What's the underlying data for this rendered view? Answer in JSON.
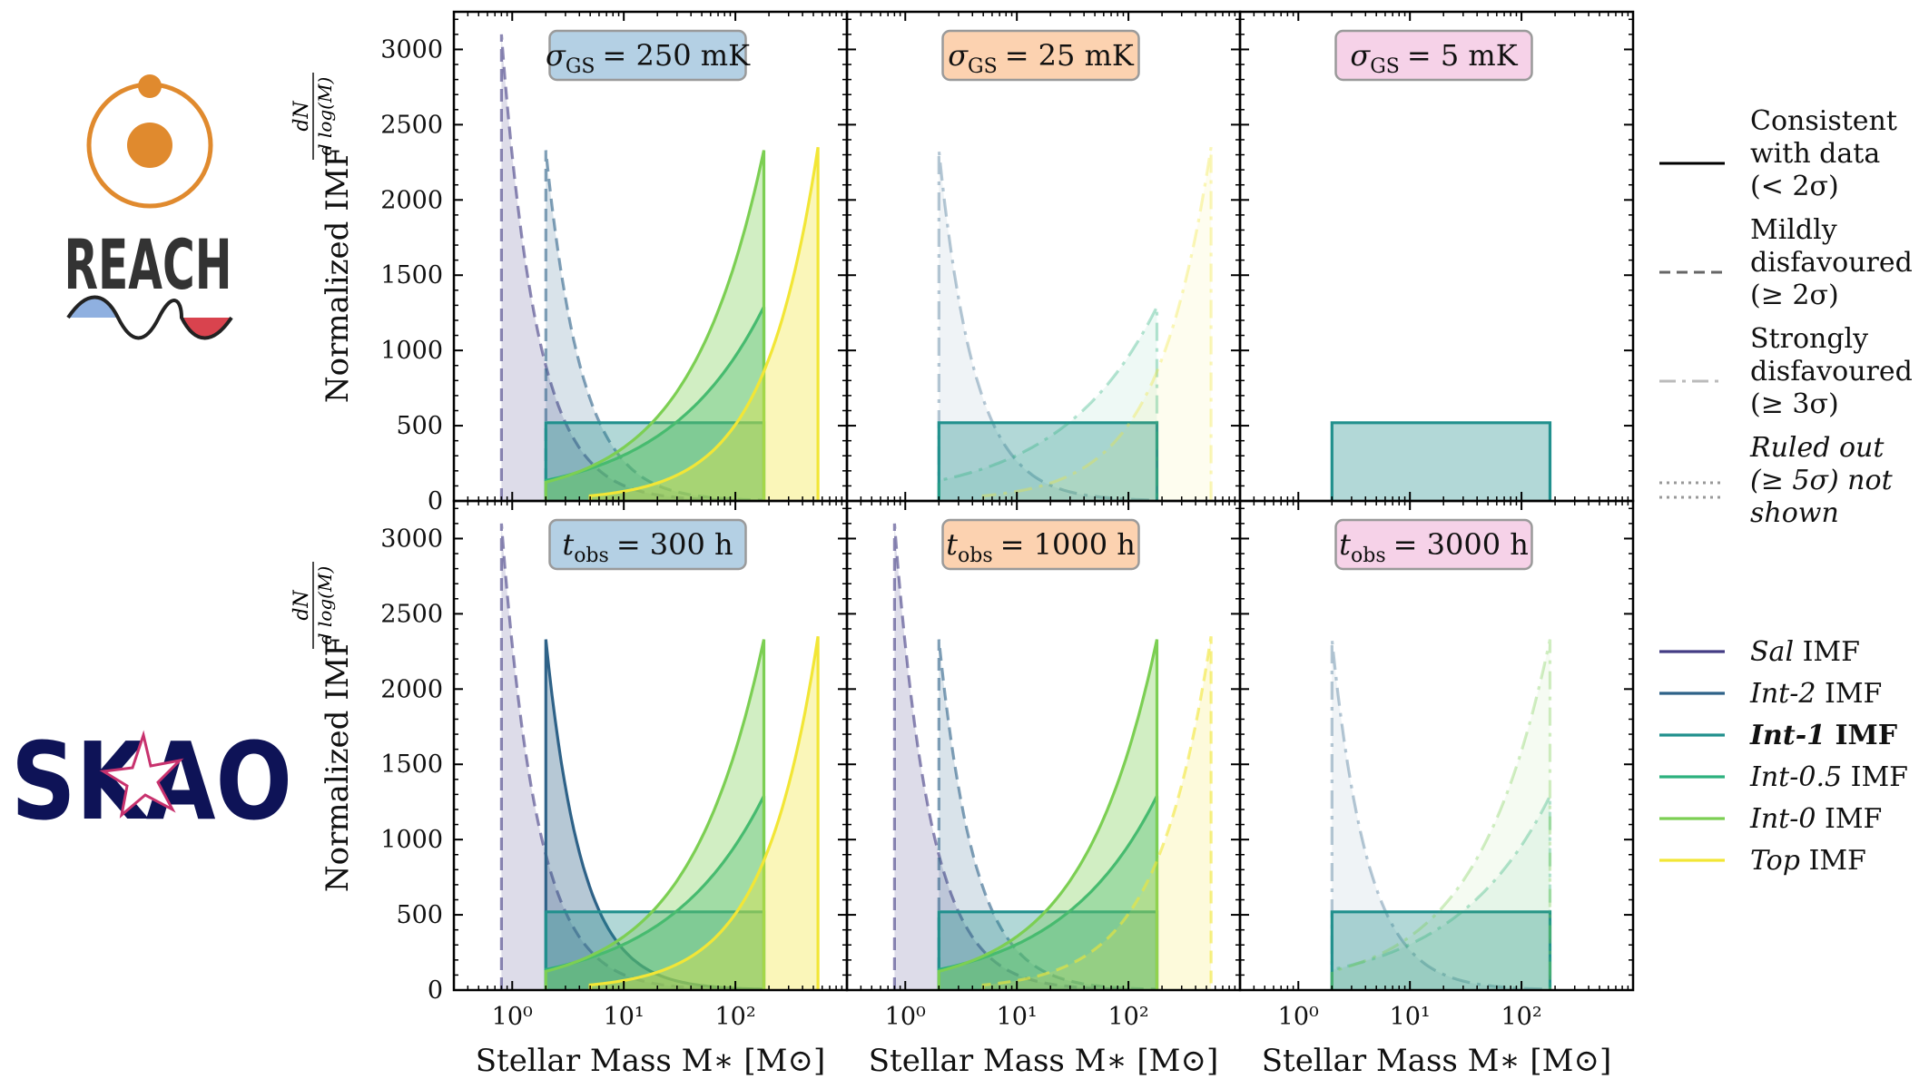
{
  "logos": {
    "reach": "REACH",
    "skao": "SKAO"
  },
  "figure": {
    "xlabel": "Stellar Mass M∗ [M⊙]",
    "ylabel": "Normalized IMF",
    "ylabel_frac_num": "dN",
    "ylabel_frac_den": "d log(M)",
    "x_tick_labels": [
      "10⁰",
      "10¹",
      "10²"
    ],
    "y_tick_labels": [
      "0",
      "500",
      "1000",
      "1500",
      "2000",
      "2500",
      "3000"
    ]
  },
  "legend": {
    "styles": [
      {
        "text": [
          "Consistent",
          "with data",
          "(< 2σ)"
        ],
        "dash": "solid"
      },
      {
        "text": [
          "Mildly",
          "disfavoured",
          "(≥ 2σ)"
        ],
        "dash": "dashed"
      },
      {
        "text": [
          "Strongly",
          "disfavoured",
          "(≥ 3σ)"
        ],
        "dash": "dashdot"
      },
      {
        "text": [
          "Ruled out",
          "(≥ 5σ) not",
          "shown"
        ],
        "dash": "dotted"
      }
    ],
    "imfs": [
      {
        "name": "Sal",
        "suffix": " IMF",
        "color": "#433c84",
        "bold": false
      },
      {
        "name": "Int-2",
        "suffix": " IMF",
        "color": "#2e6288",
        "bold": false
      },
      {
        "name": "Int-1",
        "suffix": " IMF",
        "color": "#21908d",
        "bold": true
      },
      {
        "name": "Int-0.5",
        "suffix": " IMF",
        "color": "#2cb17e",
        "bold": false
      },
      {
        "name": "Int-0",
        "suffix": " IMF",
        "color": "#7ccf53",
        "bold": false
      },
      {
        "name": "Top",
        "suffix": " IMF",
        "color": "#f2e636",
        "bold": false
      }
    ]
  },
  "chart_data": {
    "type": "area",
    "title": "",
    "xlabel": "Stellar Mass M∗ [M⊙]",
    "ylabel": "Normalized IMF dN/dlog(M)",
    "xscale": "log",
    "xlim": [
      0.3,
      1000
    ],
    "ylim": [
      0,
      3250
    ],
    "yticks": [
      0,
      500,
      1000,
      1500,
      2000,
      2500,
      3000
    ],
    "curves": {
      "Sal": {
        "mmin": 0.8,
        "mmax": 100,
        "peak": 3100,
        "slope": -1.35
      },
      "Int-2": {
        "mmin": 2,
        "mmax": 180,
        "peak": 2330,
        "slope": -1.35
      },
      "Int-1": {
        "mmin": 2,
        "mmax": 180,
        "peak": 520,
        "slope": 0.0
      },
      "Int-0.5": {
        "mmin": 2,
        "mmax": 180,
        "peak": 1290,
        "slope": 0.5
      },
      "Int-0": {
        "mmin": 2,
        "mmax": 180,
        "peak": 2330,
        "slope": 0.65
      },
      "Top": {
        "mmin": 5,
        "mmax": 550,
        "peak": 2350,
        "slope": 0.9
      }
    },
    "panels": [
      {
        "label": "σGS = 250 mK",
        "sub": "GS",
        "var": "σ",
        "value": "= 250 mK",
        "box_color": "#b4d0e4",
        "status": {
          "Sal": "dashed",
          "Int-2": "dashed",
          "Int-1": "solid",
          "Int-0.5": "solid",
          "Int-0": "solid",
          "Top": "solid"
        }
      },
      {
        "label": "σGS = 25 mK",
        "sub": "GS",
        "var": "σ",
        "value": "= 25 mK",
        "box_color": "#fcd2b0",
        "status": {
          "Sal": "out",
          "Int-2": "dashdot",
          "Int-1": "solid",
          "Int-0.5": "dashdot",
          "Int-0": "out",
          "Top": "dashdot"
        }
      },
      {
        "label": "σGS = 5 mK",
        "sub": "GS",
        "var": "σ",
        "value": "= 5 mK",
        "box_color": "#f6d2e8",
        "status": {
          "Sal": "out",
          "Int-2": "out",
          "Int-1": "solid",
          "Int-0.5": "out",
          "Int-0": "out",
          "Top": "out"
        }
      },
      {
        "label": "tobs = 300 h",
        "sub": "obs",
        "var": "t",
        "value": "= 300 h",
        "box_color": "#b4d0e4",
        "status": {
          "Sal": "dashed",
          "Int-2": "solid",
          "Int-1": "solid",
          "Int-0.5": "solid",
          "Int-0": "solid",
          "Top": "solid"
        }
      },
      {
        "label": "tobs = 1000 h",
        "sub": "obs",
        "var": "t",
        "value": "= 1000 h",
        "box_color": "#fcd2b0",
        "status": {
          "Sal": "dashed",
          "Int-2": "dashed",
          "Int-1": "solid",
          "Int-0.5": "solid",
          "Int-0": "solid",
          "Top": "dashed"
        }
      },
      {
        "label": "tobs = 3000 h",
        "sub": "obs",
        "var": "t",
        "value": "= 3000 h",
        "box_color": "#f6d2e8",
        "status": {
          "Sal": "out",
          "Int-2": "dashdot",
          "Int-1": "solid",
          "Int-0.5": "dashdot",
          "Int-0": "dashdot",
          "Top": "out"
        }
      }
    ]
  }
}
